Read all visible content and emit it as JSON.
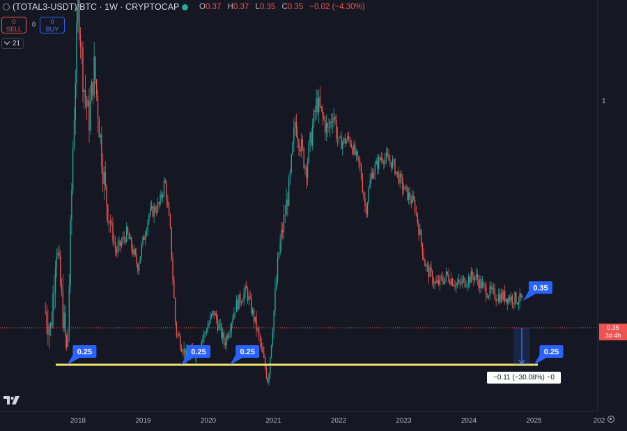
{
  "header": {
    "symbol": "(TOTAL3-USDT)/BTC · 1W · CRYPTOCAP",
    "ohlc": [
      {
        "key": "O",
        "value": "0.37"
      },
      {
        "key": "H",
        "value": "0.37"
      },
      {
        "key": "L",
        "value": "0.35"
      },
      {
        "key": "C",
        "value": "0.35"
      }
    ],
    "change": "−0.02 (−4.30%)"
  },
  "trade": {
    "sell_value": "0",
    "sell_label": "SELL",
    "buy_value": "0",
    "buy_label": "BUY",
    "spread": "0"
  },
  "indicator_count": "21",
  "price_scale": {
    "label_1": "1",
    "last_price": "0.35",
    "countdown": "3d 4h"
  },
  "measure_label": "−0.11 (−30.08%) −0",
  "colors": {
    "up": "#26a69a",
    "down": "#ef5350",
    "support": "#f5e66e",
    "callout": "#2962ff",
    "background": "#151822"
  },
  "chart_data": {
    "type": "candlestick",
    "timeframe": "1W",
    "x_ticks": [
      "2018",
      "2019",
      "2020",
      "2021",
      "2022",
      "2023",
      "2024",
      "2025",
      "202"
    ],
    "y_axis": {
      "scale": "log",
      "visible_tick": "1",
      "range": [
        0.2,
        1.5
      ]
    },
    "last_price": 0.35,
    "support_level": 0.25,
    "annotations": [
      {
        "label": "0.25",
        "date": "2017-11"
      },
      {
        "label": "0.25",
        "date": "2019-08"
      },
      {
        "label": "0.25",
        "date": "2020-05"
      },
      {
        "label": "0.35",
        "date": "2024-11"
      },
      {
        "label": "0.25",
        "date": "2025-01"
      }
    ],
    "trend": [
      {
        "date": "2017-07",
        "value": 0.33
      },
      {
        "date": "2017-08",
        "value": 0.3
      },
      {
        "date": "2017-09",
        "value": 0.48
      },
      {
        "date": "2017-10",
        "value": 0.35
      },
      {
        "date": "2017-11",
        "value": 0.26
      },
      {
        "date": "2017-12",
        "value": 0.75
      },
      {
        "date": "2018-01",
        "value": 1.7
      },
      {
        "date": "2018-02",
        "value": 1.1
      },
      {
        "date": "2018-03",
        "value": 0.9
      },
      {
        "date": "2018-04",
        "value": 1.2
      },
      {
        "date": "2018-05",
        "value": 0.85
      },
      {
        "date": "2018-06",
        "value": 0.62
      },
      {
        "date": "2018-08",
        "value": 0.45
      },
      {
        "date": "2018-10",
        "value": 0.5
      },
      {
        "date": "2018-12",
        "value": 0.42
      },
      {
        "date": "2019-02",
        "value": 0.55
      },
      {
        "date": "2019-04",
        "value": 0.58
      },
      {
        "date": "2019-05",
        "value": 0.66
      },
      {
        "date": "2019-06",
        "value": 0.5
      },
      {
        "date": "2019-07",
        "value": 0.3
      },
      {
        "date": "2019-09",
        "value": 0.26
      },
      {
        "date": "2019-11",
        "value": 0.27
      },
      {
        "date": "2020-02",
        "value": 0.33
      },
      {
        "date": "2020-04",
        "value": 0.28
      },
      {
        "date": "2020-06",
        "value": 0.34
      },
      {
        "date": "2020-08",
        "value": 0.37
      },
      {
        "date": "2020-10",
        "value": 0.3
      },
      {
        "date": "2020-12",
        "value": 0.23
      },
      {
        "date": "2021-02",
        "value": 0.45
      },
      {
        "date": "2021-04",
        "value": 0.65
      },
      {
        "date": "2021-05",
        "value": 0.9
      },
      {
        "date": "2021-07",
        "value": 0.7
      },
      {
        "date": "2021-09",
        "value": 1.0
      },
      {
        "date": "2021-11",
        "value": 0.85
      },
      {
        "date": "2021-12",
        "value": 0.95
      },
      {
        "date": "2022-01",
        "value": 0.8
      },
      {
        "date": "2022-03",
        "value": 0.82
      },
      {
        "date": "2022-05",
        "value": 0.7
      },
      {
        "date": "2022-06",
        "value": 0.56
      },
      {
        "date": "2022-07",
        "value": 0.68
      },
      {
        "date": "2022-09",
        "value": 0.75
      },
      {
        "date": "2022-11",
        "value": 0.72
      },
      {
        "date": "2023-01",
        "value": 0.63
      },
      {
        "date": "2023-03",
        "value": 0.58
      },
      {
        "date": "2023-05",
        "value": 0.42
      },
      {
        "date": "2023-07",
        "value": 0.38
      },
      {
        "date": "2023-09",
        "value": 0.4
      },
      {
        "date": "2023-11",
        "value": 0.38
      },
      {
        "date": "2024-02",
        "value": 0.4
      },
      {
        "date": "2024-04",
        "value": 0.37
      },
      {
        "date": "2024-06",
        "value": 0.36
      },
      {
        "date": "2024-09",
        "value": 0.355
      },
      {
        "date": "2024-11",
        "value": 0.35
      }
    ]
  }
}
